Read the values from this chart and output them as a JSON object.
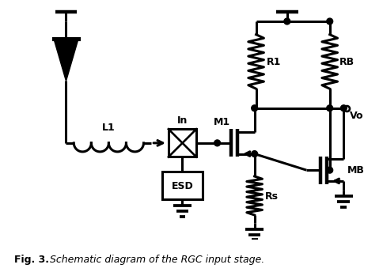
{
  "title_bold": "Fig. 3.",
  "title_rest": "  Schematic diagram of the RGC input stage.",
  "bg_color": "#ffffff",
  "line_color": "#000000",
  "lw": 2.2,
  "figsize": [
    4.74,
    3.44
  ],
  "dpi": 100
}
